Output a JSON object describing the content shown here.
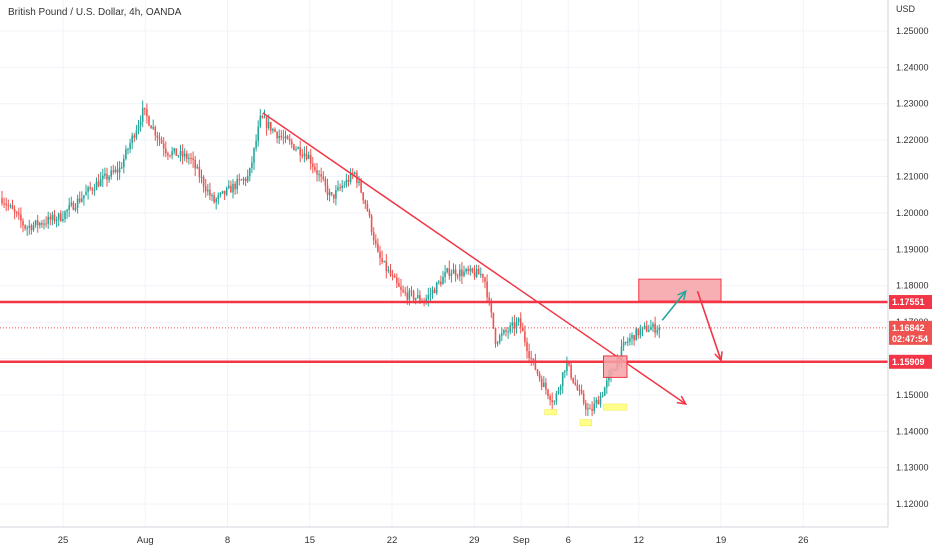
{
  "title": "British Pound / U.S. Dollar, 4h, OANDA",
  "currency_label": "USD",
  "colors": {
    "up": "#26a69a",
    "down": "#ef5350",
    "level_line": "#f23645",
    "box_red_fill": "#f7a1a6",
    "box_yellow_fill": "#ffff66",
    "arrow_green": "#26a69a",
    "arrow_red": "#f23645",
    "current_price_bg": "#ef5350",
    "grid": "#f0f3fa"
  },
  "chart_data": {
    "type": "candlestick",
    "title": "British Pound / U.S. Dollar, 4h, OANDA",
    "ylabel": "USD",
    "ylim": [
      1.1115,
      1.2585
    ],
    "y_ticks": [
      "1.25000",
      "1.24000",
      "1.23000",
      "1.22000",
      "1.21000",
      "1.20000",
      "1.19000",
      "1.18000",
      "1.17000",
      "1.16000",
      "1.15000",
      "1.14000",
      "1.13000",
      "1.12000"
    ],
    "x_ticks": [
      "25",
      "Aug",
      "8",
      "15",
      "22",
      "29",
      "Sep",
      "6",
      "12",
      "19",
      "26"
    ],
    "grid": true,
    "current_price": "1.16842",
    "countdown": "02:47:54",
    "levels": [
      {
        "label": "1.17551",
        "price": 1.17551
      },
      {
        "label": "1.15909",
        "price": 1.15909
      }
    ],
    "trendline": {
      "from": {
        "date": "2020-08-11",
        "price": 1.2275
      },
      "to": {
        "date": "2020-09-16",
        "price": 1.1475
      }
    },
    "zones": [
      {
        "kind": "red",
        "date_start": "2020-09-09",
        "date_end": "2020-09-11",
        "price_low": 1.1548,
        "price_high": 1.1607
      },
      {
        "kind": "red",
        "date_start": "2020-09-12",
        "date_end": "2020-09-19",
        "price_low": 1.1758,
        "price_high": 1.1818
      },
      {
        "kind": "yellow",
        "date_start": "2020-09-04",
        "date_end": "2020-09-05",
        "price_low": 1.1445,
        "price_high": 1.146
      },
      {
        "kind": "yellow",
        "date_start": "2020-09-07",
        "date_end": "2020-09-08",
        "price_low": 1.1415,
        "price_high": 1.1432
      },
      {
        "kind": "yellow",
        "date_start": "2020-09-09",
        "date_end": "2020-09-11",
        "price_low": 1.1458,
        "price_high": 1.1475
      }
    ],
    "arrows": [
      {
        "color": "green",
        "from": {
          "date": "2020-09-14",
          "price": 1.1705
        },
        "to": {
          "date": "2020-09-16",
          "price": 1.1785
        }
      },
      {
        "color": "red",
        "from": {
          "date": "2020-09-17",
          "price": 1.1785
        },
        "to": {
          "date": "2020-09-19",
          "price": 1.1595
        }
      }
    ],
    "swing_points": [
      {
        "date": "2020-07-20",
        "price": 1.204
      },
      {
        "date": "2020-07-22",
        "price": 1.196
      },
      {
        "date": "2020-07-25",
        "price": 1.199
      },
      {
        "date": "2020-07-28",
        "price": 1.208
      },
      {
        "date": "2020-07-30",
        "price": 1.212
      },
      {
        "date": "2020-08-01",
        "price": 1.228
      },
      {
        "date": "2020-08-03",
        "price": 1.217
      },
      {
        "date": "2020-08-05",
        "price": 1.215
      },
      {
        "date": "2020-08-07",
        "price": 1.203
      },
      {
        "date": "2020-08-09",
        "price": 1.208
      },
      {
        "date": "2020-08-10",
        "price": 1.21
      },
      {
        "date": "2020-08-11",
        "price": 1.226
      },
      {
        "date": "2020-08-13",
        "price": 1.22
      },
      {
        "date": "2020-08-15",
        "price": 1.216
      },
      {
        "date": "2020-08-17",
        "price": 1.204
      },
      {
        "date": "2020-08-19",
        "price": 1.211
      },
      {
        "date": "2020-08-20",
        "price": 1.202
      },
      {
        "date": "2020-08-21",
        "price": 1.188
      },
      {
        "date": "2020-08-23",
        "price": 1.178
      },
      {
        "date": "2020-08-25",
        "price": 1.176
      },
      {
        "date": "2020-08-27",
        "price": 1.184
      },
      {
        "date": "2020-08-30",
        "price": 1.183
      },
      {
        "date": "2020-08-31",
        "price": 1.165
      },
      {
        "date": "2020-09-02",
        "price": 1.17
      },
      {
        "date": "2020-09-03",
        "price": 1.16
      },
      {
        "date": "2020-09-04",
        "price": 1.153
      },
      {
        "date": "2020-09-05",
        "price": 1.148
      },
      {
        "date": "2020-09-06",
        "price": 1.159
      },
      {
        "date": "2020-09-07",
        "price": 1.151
      },
      {
        "date": "2020-09-08",
        "price": 1.145
      },
      {
        "date": "2020-09-09",
        "price": 1.15
      },
      {
        "date": "2020-09-10",
        "price": 1.157
      },
      {
        "date": "2020-09-11",
        "price": 1.164
      },
      {
        "date": "2020-09-12",
        "price": 1.167
      },
      {
        "date": "2020-09-13",
        "price": 1.1684
      }
    ]
  }
}
